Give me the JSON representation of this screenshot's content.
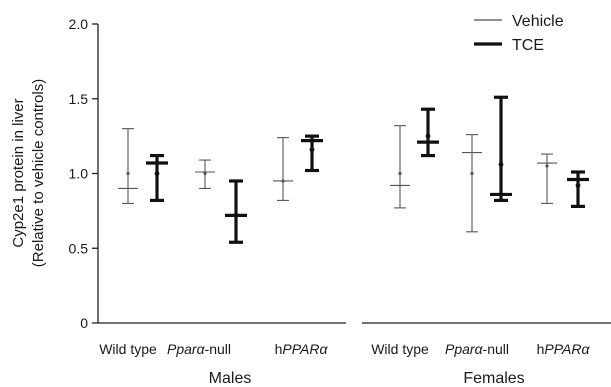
{
  "chart_data": {
    "type": "range",
    "ylabel_line1": "Cyp2e1 protein in liver",
    "ylabel_line2": "(Relative to vehicle controls)",
    "ylim": [
      0,
      2.0
    ],
    "yticks": [
      "0",
      "0.5",
      "1.0",
      "1.5",
      "2.0"
    ],
    "ytick_values": [
      0,
      0.5,
      1.0,
      1.5,
      2.0
    ],
    "legend": {
      "position": "top-right",
      "vehicle_label": "Vehicle",
      "tce_label": "TCE"
    },
    "panels": [
      {
        "name": "Males",
        "groups": [
          {
            "category": "Wild type",
            "vehicle": {
              "min": 0.8,
              "median": 0.9,
              "max": 1.3,
              "mean": 1.0
            },
            "tce": {
              "min": 0.82,
              "median": 1.07,
              "max": 1.12,
              "mean": 1.0
            }
          },
          {
            "category": "Pparα-null",
            "vehicle": {
              "min": 0.9,
              "median": 1.01,
              "max": 1.09,
              "mean": 1.0
            },
            "tce": {
              "min": 0.54,
              "median": 0.72,
              "max": 0.95,
              "mean": 0.72
            }
          },
          {
            "category": "hPPARα",
            "vehicle": {
              "min": 0.82,
              "median": 0.95,
              "max": 1.24,
              "mean": 0.95
            },
            "tce": {
              "min": 1.02,
              "median": 1.22,
              "max": 1.25,
              "mean": 1.16
            }
          }
        ]
      },
      {
        "name": "Females",
        "groups": [
          {
            "category": "Wild type",
            "vehicle": {
              "min": 0.77,
              "median": 0.92,
              "max": 1.32,
              "mean": 1.0
            },
            "tce": {
              "min": 1.12,
              "median": 1.21,
              "max": 1.43,
              "mean": 1.25
            }
          },
          {
            "category": "Pparα-null",
            "vehicle": {
              "min": 0.61,
              "median": 1.14,
              "max": 1.26,
              "mean": 1.0
            },
            "tce": {
              "min": 0.82,
              "median": 0.86,
              "max": 1.51,
              "mean": 1.06
            }
          },
          {
            "category": "hPPARα",
            "vehicle": {
              "min": 0.8,
              "median": 1.07,
              "max": 1.13,
              "mean": 1.05
            },
            "tce": {
              "min": 0.78,
              "median": 0.96,
              "max": 1.01,
              "mean": 0.92
            }
          }
        ]
      }
    ],
    "category_labels": [
      {
        "text": "Wild type",
        "parts": [
          {
            "t": "Wild type",
            "i": false
          }
        ]
      },
      {
        "text": "Pparα-null",
        "parts": [
          {
            "t": "Ppar",
            "i": true
          },
          {
            "t": "α",
            "i": true
          },
          {
            "t": "-null",
            "i": false
          }
        ]
      },
      {
        "text": "hPPARα",
        "parts": [
          {
            "t": "h",
            "i": false
          },
          {
            "t": "PPAR",
            "i": true
          },
          {
            "t": "α",
            "i": true
          }
        ]
      },
      {
        "text": "Wild type",
        "parts": [
          {
            "t": "Wild type",
            "i": false
          }
        ]
      },
      {
        "text": "Pparα-null",
        "parts": [
          {
            "t": "Ppar",
            "i": true
          },
          {
            "t": "α",
            "i": true
          },
          {
            "t": "-null",
            "i": false
          }
        ]
      },
      {
        "text": "hPPARα",
        "parts": [
          {
            "t": "h",
            "i": false
          },
          {
            "t": "PPAR",
            "i": true
          },
          {
            "t": "α",
            "i": true
          }
        ]
      }
    ],
    "colors": {
      "vehicle": "#555555",
      "tce": "#111111",
      "axis": "#222222"
    }
  }
}
